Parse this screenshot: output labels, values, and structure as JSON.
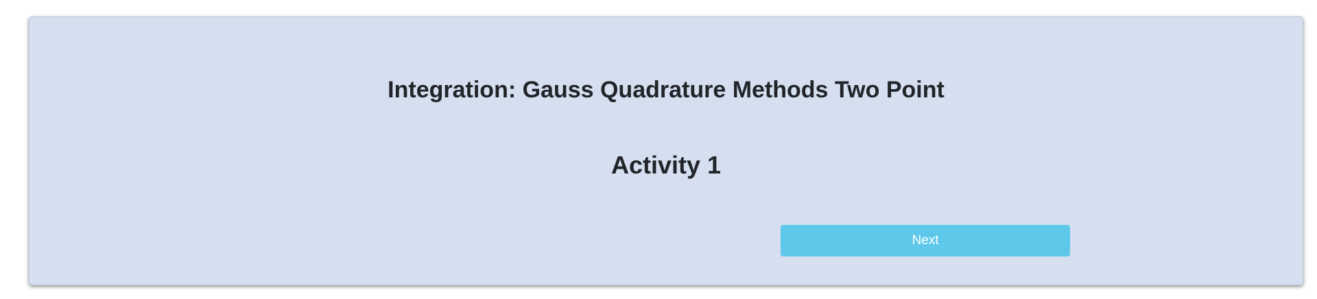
{
  "page": {
    "title": "Integration: Gauss Quadrature Methods Two Point",
    "subtitle": "Activity 1"
  },
  "actions": {
    "next_label": "Next"
  },
  "colors": {
    "card_background": "#d5dff0",
    "button_background": "#5ec8ea",
    "text": "#212529",
    "button_text": "#ffffff"
  }
}
